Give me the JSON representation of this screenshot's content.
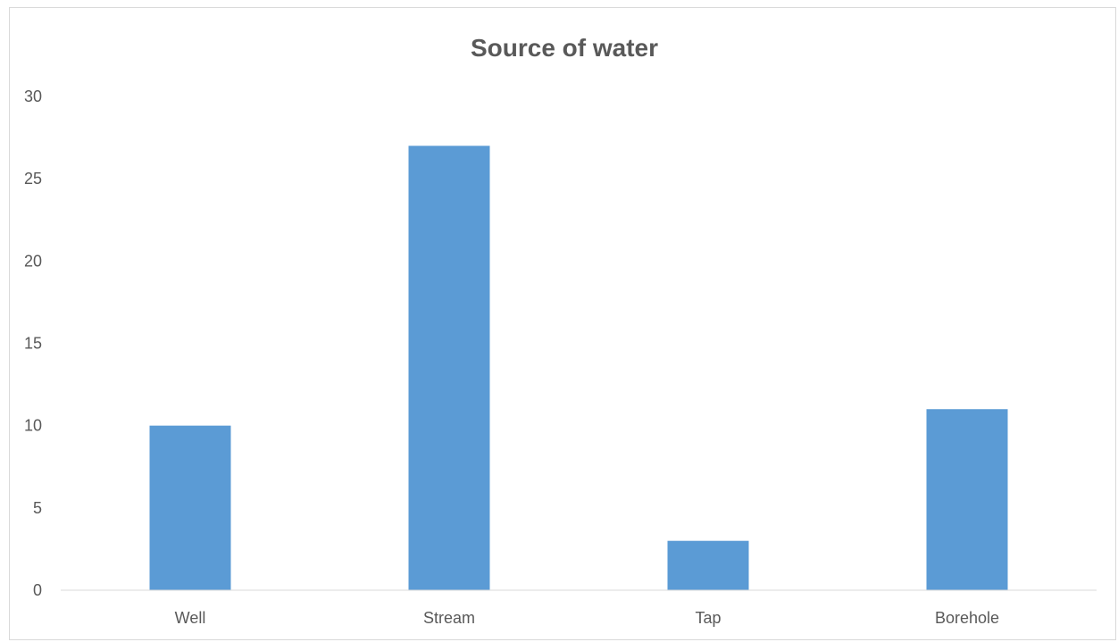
{
  "chart_data": {
    "type": "bar",
    "title": "Source of water",
    "xlabel": "",
    "ylabel": "",
    "categories": [
      "Well",
      "Stream",
      "Tap",
      "Borehole"
    ],
    "values": [
      10,
      27,
      3,
      11
    ],
    "ylim": [
      0,
      30
    ],
    "yticks": [
      0,
      5,
      10,
      15,
      20,
      25,
      30
    ],
    "grid": false,
    "legend": "none",
    "colors": {
      "bar": "#5b9bd5",
      "axis": "#d9d9d9",
      "text": "#595959"
    }
  }
}
